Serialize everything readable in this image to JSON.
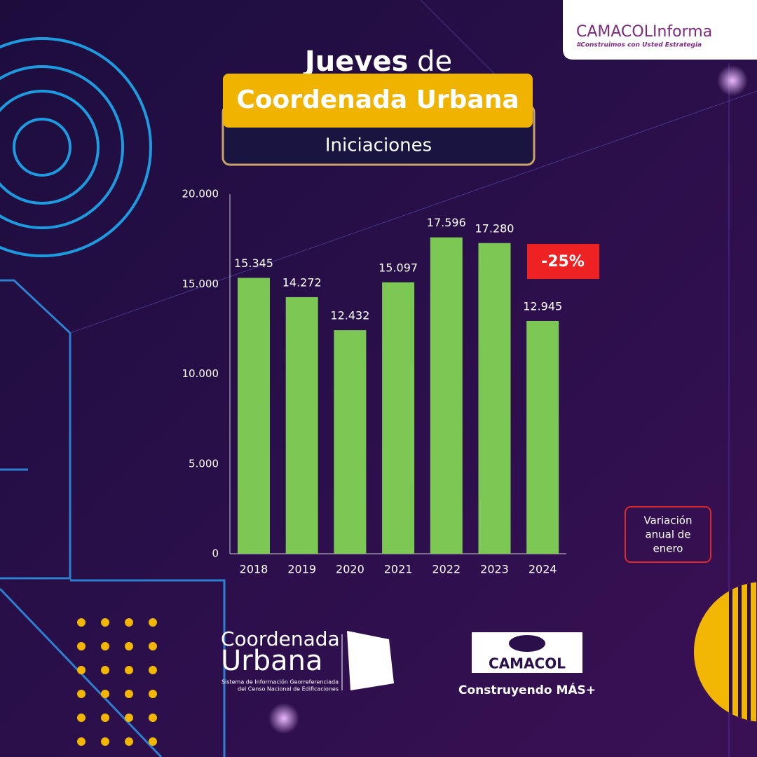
{
  "header": {
    "brand": "CAMACOLInforma",
    "tagline": "#Construimos con Usted Estrategia",
    "kicker_bold": "Jueves",
    "kicker_rest": "de",
    "title": "Coordenada Urbana",
    "subtitle": "Iniciaciones"
  },
  "chart_data": {
    "type": "bar",
    "categories": [
      "2018",
      "2019",
      "2020",
      "2021",
      "2022",
      "2023",
      "2024"
    ],
    "values": [
      15345,
      14272,
      12432,
      15097,
      17596,
      17280,
      12945
    ],
    "value_labels": [
      "15.345",
      "14.272",
      "12.432",
      "15.097",
      "17.596",
      "17.280",
      "12.945"
    ],
    "color": "#7dc855",
    "ylim": [
      0,
      20000
    ],
    "yticks": [
      0,
      {
        "value": 5000,
        "label": "5.000"
      },
      {
        "value": 10000,
        "label": "10.000"
      },
      {
        "value": 15000,
        "label": "15.000"
      },
      {
        "value": 20000,
        "label": "20.000"
      }
    ],
    "grid": false,
    "annotation": "-25%",
    "note": [
      "Variación",
      "anual de",
      "enero"
    ]
  },
  "footer": {
    "logo_line1": "Coordenada",
    "logo_line2": "Urbana",
    "logo_sub1": "Sistema de Información Georreferenciada",
    "logo_sub2": "del Censo Nacional de Edificaciones",
    "camacol": "CAMACOL",
    "slogan": "Construyendo MÁS+"
  }
}
